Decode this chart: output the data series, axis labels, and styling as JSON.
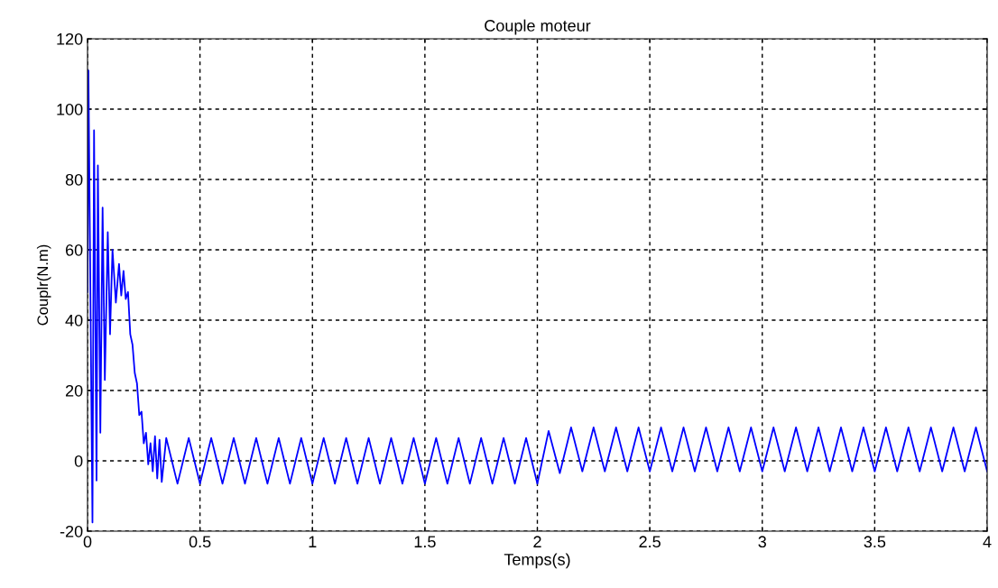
{
  "chart_data": {
    "type": "line",
    "title": "Couple moteur",
    "xlabel": "Temps(s)",
    "ylabel": "Couplr(N.m)",
    "xlim": [
      0,
      4
    ],
    "xticks": [
      0,
      0.5,
      1,
      1.5,
      2,
      2.5,
      3,
      3.5,
      4
    ],
    "ylim": [
      -20,
      120
    ],
    "yticks": [
      -20,
      0,
      20,
      40,
      60,
      80,
      100,
      120
    ],
    "grid": true,
    "line_style": "solid",
    "marker": "none",
    "series": [
      {
        "color": "#0000ff",
        "x": [
          0,
          0.004,
          0.022,
          0.029,
          0.04,
          0.046,
          0.057,
          0.067,
          0.077,
          0.09,
          0.1,
          0.111,
          0.126,
          0.14,
          0.15,
          0.16,
          0.17,
          0.18,
          0.19,
          0.2,
          0.21,
          0.22,
          0.23,
          0.24,
          0.25,
          0.26,
          0.27,
          0.28,
          0.29,
          0.3,
          0.31,
          0.32,
          0.33,
          0.35,
          0.4,
          0.45,
          0.5,
          0.55,
          0.6,
          0.65,
          0.7,
          0.75,
          0.8,
          0.85,
          0.9,
          0.95,
          1,
          1.05,
          1.1,
          1.15,
          1.2,
          1.25,
          1.3,
          1.35,
          1.4,
          1.45,
          1.5,
          1.55,
          1.6,
          1.65,
          1.7,
          1.75,
          1.8,
          1.85,
          1.9,
          1.95,
          2,
          2.05,
          2.1,
          2.15,
          2.2,
          2.25,
          2.3,
          2.35,
          2.4,
          2.45,
          2.5,
          2.55,
          2.6,
          2.65,
          2.7,
          2.75,
          2.8,
          2.85,
          2.9,
          2.95,
          3,
          3.05,
          3.1,
          3.15,
          3.2,
          3.25,
          3.3,
          3.35,
          3.4,
          3.45,
          3.5,
          3.55,
          3.6,
          3.65,
          3.7,
          3.75,
          3.8,
          3.85,
          3.9,
          3.95,
          4
        ],
        "values": [
          48,
          111,
          -17.5,
          94,
          -5.6,
          84,
          8,
          72,
          23,
          65,
          36,
          60,
          45,
          56,
          47,
          54,
          46,
          48,
          36,
          33,
          25,
          22,
          13,
          14,
          5,
          8,
          -1,
          5,
          -3,
          7,
          -5,
          6,
          -6,
          6.5,
          -6.5,
          6.5,
          -6.5,
          6.5,
          -6.5,
          6.5,
          -6.5,
          6.5,
          -6.5,
          6.5,
          -6.5,
          6.5,
          -6.5,
          6.5,
          -6.5,
          6.5,
          -6.5,
          6.5,
          -6.5,
          6.5,
          -6.5,
          6.5,
          -6.5,
          6.5,
          -6.5,
          6.5,
          -6.5,
          6.5,
          -6.5,
          6.5,
          -6.5,
          6.5,
          -6.5,
          8.5,
          -3.5,
          9.5,
          -3,
          9.5,
          -3,
          9.5,
          -3,
          9.5,
          -3,
          9.5,
          -3,
          9.5,
          -3,
          9.5,
          -3,
          9.5,
          -3,
          9.5,
          -3,
          9.5,
          -3,
          9.5,
          -3,
          9.5,
          -3,
          9.5,
          -3,
          9.5,
          -3,
          9.5,
          -3,
          9.5,
          -3,
          9.5,
          -3,
          9.5,
          -3,
          9.5,
          -3
        ]
      }
    ]
  }
}
